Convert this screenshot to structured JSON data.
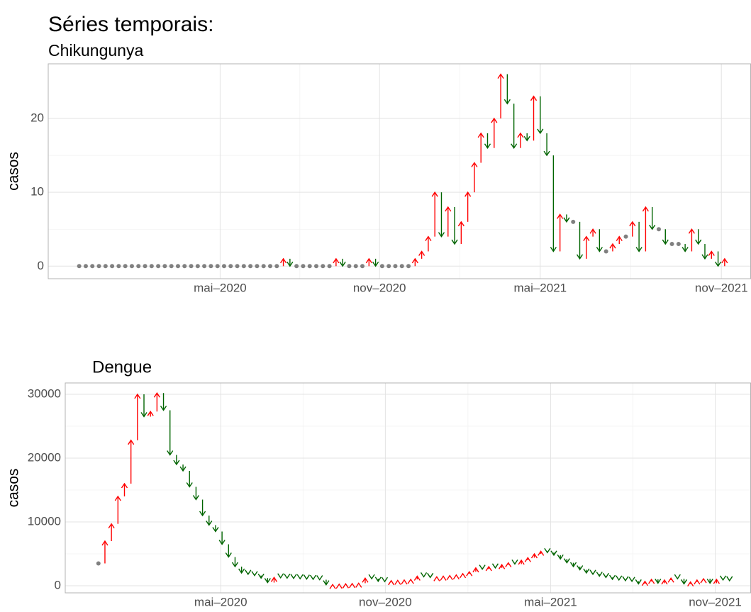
{
  "title": "Séries temporais:",
  "chart_data": [
    {
      "type": "arrow",
      "title": "Chikungunya",
      "y_label": "casos",
      "values": [
        0,
        0,
        0,
        0,
        0,
        0,
        0,
        0,
        0,
        0,
        0,
        0,
        0,
        0,
        0,
        0,
        0,
        0,
        0,
        0,
        0,
        0,
        0,
        0,
        0,
        0,
        0,
        0,
        0,
        0,
        0,
        1,
        0,
        0,
        0,
        0,
        0,
        0,
        0,
        1,
        0,
        0,
        0,
        0,
        1,
        0,
        0,
        0,
        0,
        0,
        0,
        1,
        2,
        4,
        10,
        4,
        8,
        3,
        6,
        10,
        14,
        18,
        16,
        20,
        26,
        22,
        16,
        18,
        17,
        23,
        18,
        15,
        2,
        7,
        6,
        6,
        1,
        4,
        5,
        2,
        2,
        3,
        4,
        4,
        6,
        2,
        8,
        5,
        5,
        3,
        3,
        3,
        2,
        5,
        3,
        1,
        2,
        0,
        1
      ],
      "xlim": [
        -4.7,
        102
      ],
      "xticks": [
        {
          "value": 21.4,
          "label": "mai–2020"
        },
        {
          "value": 45.6,
          "label": "nov–2020"
        },
        {
          "value": 70.0,
          "label": "mai–2021"
        },
        {
          "value": 97.5,
          "label": "nov–2021"
        }
      ],
      "ylim": [
        -1.7,
        27.4
      ],
      "yticks": [
        0,
        10,
        20
      ],
      "grid": true,
      "colors": {
        "up": "#ff0000",
        "down": "#006400",
        "same": "#808080"
      }
    },
    {
      "type": "arrow",
      "title": "Dengue",
      "y_label": "casos",
      "values": [
        3500,
        7000,
        9700,
        14000,
        16000,
        22800,
        30000,
        26500,
        27300,
        30200,
        27500,
        20500,
        19000,
        18000,
        15500,
        13500,
        11000,
        9500,
        8500,
        6500,
        4500,
        3000,
        2000,
        1800,
        1600,
        1200,
        500,
        1300,
        1250,
        1200,
        1150,
        1100,
        1050,
        1000,
        950,
        150,
        200,
        250,
        300,
        350,
        400,
        1200,
        1100,
        700,
        650,
        800,
        850,
        900,
        1000,
        1500,
        1400,
        1300,
        1400,
        1500,
        1600,
        1700,
        1900,
        2200,
        2800,
        2600,
        3000,
        2800,
        3300,
        3600,
        3400,
        4000,
        4400,
        5000,
        5400,
        5200,
        4800,
        4200,
        3600,
        3000,
        2500,
        2000,
        1800,
        1500,
        1300,
        1000,
        900,
        800,
        700,
        300,
        700,
        1000,
        400,
        900,
        1200,
        1100,
        300,
        600,
        900,
        1100,
        400,
        1000,
        900,
        800
      ],
      "xlim": [
        -5.1,
        100.3
      ],
      "xticks": [
        {
          "value": 18.8,
          "label": "mai–2020"
        },
        {
          "value": 44.1,
          "label": "nov–2020"
        },
        {
          "value": 69.5,
          "label": "mai–2021"
        },
        {
          "value": 94.8,
          "label": "nov–2021"
        }
      ],
      "ylim": [
        -1110,
        31780
      ],
      "yticks": [
        0,
        10000,
        20000,
        30000
      ],
      "grid": true,
      "colors": {
        "up": "#ff0000",
        "down": "#006400",
        "same": "#808080"
      }
    }
  ]
}
